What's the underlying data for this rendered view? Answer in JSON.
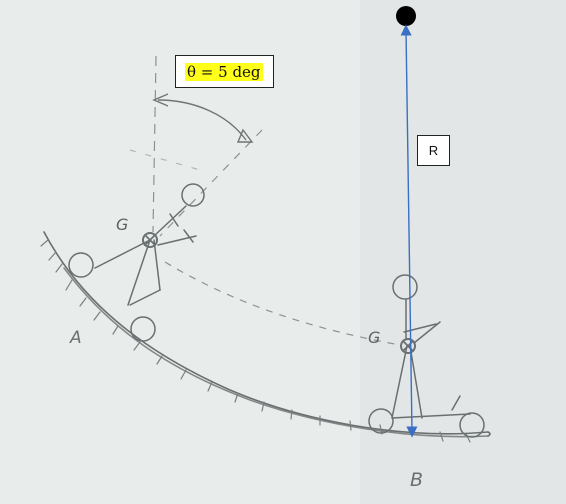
{
  "diagram": {
    "theta_label": "θ = 5 deg",
    "radius_label": "R",
    "point_a_label": "A",
    "point_b_label": "B",
    "cg_label_a": "G",
    "cg_label_b": "G"
  },
  "colors": {
    "background": "#e6ebea",
    "pencil": "#6a6f70",
    "pencil_light": "#9aa0a0",
    "radius_arrow": "#3a6fc4",
    "pivot": "#000000",
    "highlight": "#ffff1a"
  }
}
